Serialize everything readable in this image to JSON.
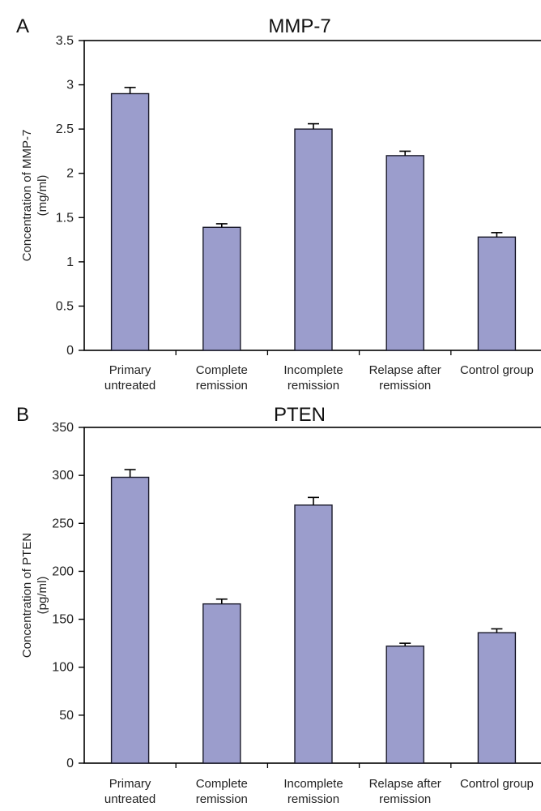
{
  "colors": {
    "bar": "#9b9dcc",
    "bar_stroke": "#1a1a2a",
    "axis": "#000000"
  },
  "chart_data": [
    {
      "panel": "A",
      "type": "bar",
      "title": "MMP-7",
      "ylabel": [
        "Concentration of MMP-7",
        "(mg/ml)"
      ],
      "xlabel": "",
      "categories": [
        [
          "Primary",
          "untreated"
        ],
        [
          "Complete",
          "remission"
        ],
        [
          "Incomplete",
          "remission"
        ],
        [
          "Relapse after",
          "remission"
        ],
        [
          "Control group"
        ]
      ],
      "values": [
        2.9,
        1.39,
        2.5,
        2.2,
        1.28
      ],
      "errors": [
        0.07,
        0.04,
        0.06,
        0.05,
        0.05
      ],
      "ylim": [
        0,
        3.5
      ],
      "yticks": [
        0,
        0.5,
        1,
        1.5,
        2,
        2.5,
        3,
        3.5
      ],
      "ytick_labels": [
        "0",
        "0.5",
        "1",
        "1.5",
        "2",
        "2.5",
        "3",
        "3.5"
      ],
      "grid": false
    },
    {
      "panel": "B",
      "type": "bar",
      "title": "PTEN",
      "ylabel": [
        "Concentration of PTEN",
        "(pg/ml)"
      ],
      "xlabel": "",
      "categories": [
        [
          "Primary",
          "untreated"
        ],
        [
          "Complete",
          "remission"
        ],
        [
          "Incomplete",
          "remission"
        ],
        [
          "Relapse after",
          "remission"
        ],
        [
          "Control group"
        ]
      ],
      "values": [
        298,
        166,
        269,
        122,
        136
      ],
      "errors": [
        8,
        5,
        8,
        3,
        4
      ],
      "ylim": [
        0,
        350
      ],
      "yticks": [
        0,
        50,
        100,
        150,
        200,
        250,
        300,
        350
      ],
      "ytick_labels": [
        "0",
        "50",
        "100",
        "150",
        "200",
        "250",
        "300",
        "350"
      ],
      "grid": false
    }
  ]
}
